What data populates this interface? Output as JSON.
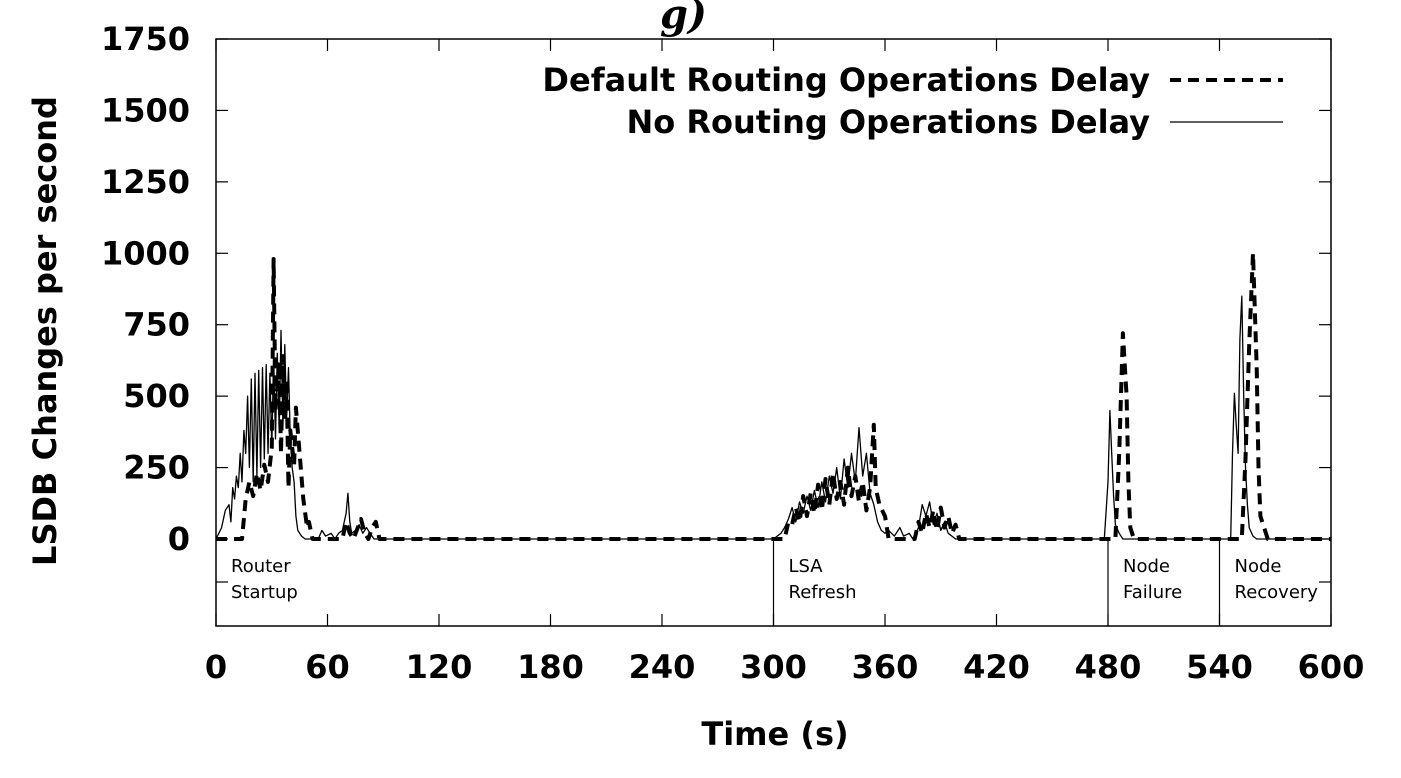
{
  "chart_data": {
    "type": "line",
    "title": "",
    "partial_title_fragment": "g)",
    "xlabel": "Time (s)",
    "ylabel": "LSDB Changes per second",
    "xlim": [
      0,
      600
    ],
    "ylim": [
      0,
      1750
    ],
    "x_ticks": [
      "0",
      "60",
      "120",
      "180",
      "240",
      "300",
      "360",
      "420",
      "480",
      "540",
      "600"
    ],
    "y_ticks": [
      "0",
      "250",
      "500",
      "750",
      "1000",
      "1250",
      "1500",
      "1750"
    ],
    "legend_position": "top-right",
    "phases": [
      {
        "label_line1": "Router",
        "label_line2": "Startup",
        "start": 0,
        "end": 300
      },
      {
        "label_line1": "LSA",
        "label_line2": "Refresh",
        "start": 300,
        "end": 480
      },
      {
        "label_line1": "Node",
        "label_line2": "Failure",
        "start": 480,
        "end": 540
      },
      {
        "label_line1": "Node",
        "label_line2": "Recovery",
        "start": 540,
        "end": 600
      }
    ],
    "series": [
      {
        "name": "Default Routing Operations Delay",
        "style": "dashed",
        "color": "#000000",
        "points": [
          [
            0,
            0
          ],
          [
            14,
            0
          ],
          [
            16,
            140
          ],
          [
            18,
            200
          ],
          [
            20,
            150
          ],
          [
            22,
            230
          ],
          [
            24,
            170
          ],
          [
            26,
            260
          ],
          [
            28,
            200
          ],
          [
            30,
            320
          ],
          [
            31,
            980
          ],
          [
            32,
            450
          ],
          [
            34,
            620
          ],
          [
            35,
            300
          ],
          [
            36,
            640
          ],
          [
            37,
            420
          ],
          [
            38,
            560
          ],
          [
            39,
            180
          ],
          [
            40,
            380
          ],
          [
            42,
            260
          ],
          [
            43,
            460
          ],
          [
            45,
            300
          ],
          [
            47,
            140
          ],
          [
            48,
            90
          ],
          [
            49,
            40
          ],
          [
            50,
            60
          ],
          [
            52,
            0
          ],
          [
            62,
            0
          ],
          [
            68,
            0
          ],
          [
            70,
            60
          ],
          [
            72,
            20
          ],
          [
            74,
            0
          ],
          [
            78,
            70
          ],
          [
            80,
            20
          ],
          [
            82,
            0
          ],
          [
            84,
            40
          ],
          [
            86,
            60
          ],
          [
            88,
            0
          ],
          [
            300,
            0
          ],
          [
            306,
            0
          ],
          [
            308,
            60
          ],
          [
            310,
            50
          ],
          [
            312,
            110
          ],
          [
            314,
            60
          ],
          [
            316,
            150
          ],
          [
            318,
            80
          ],
          [
            320,
            160
          ],
          [
            322,
            90
          ],
          [
            324,
            190
          ],
          [
            326,
            100
          ],
          [
            328,
            210
          ],
          [
            330,
            120
          ],
          [
            332,
            230
          ],
          [
            334,
            140
          ],
          [
            336,
            200
          ],
          [
            338,
            120
          ],
          [
            340,
            250
          ],
          [
            342,
            150
          ],
          [
            344,
            220
          ],
          [
            346,
            130
          ],
          [
            348,
            200
          ],
          [
            350,
            100
          ],
          [
            352,
            180
          ],
          [
            354,
            400
          ],
          [
            355,
            180
          ],
          [
            357,
            120
          ],
          [
            360,
            80
          ],
          [
            362,
            0
          ],
          [
            376,
            0
          ],
          [
            378,
            60
          ],
          [
            380,
            20
          ],
          [
            382,
            90
          ],
          [
            384,
            40
          ],
          [
            386,
            100
          ],
          [
            388,
            30
          ],
          [
            390,
            110
          ],
          [
            392,
            40
          ],
          [
            394,
            80
          ],
          [
            396,
            20
          ],
          [
            398,
            50
          ],
          [
            400,
            0
          ],
          [
            484,
            0
          ],
          [
            486,
            300
          ],
          [
            488,
            720
          ],
          [
            490,
            500
          ],
          [
            491,
            200
          ],
          [
            492,
            40
          ],
          [
            494,
            0
          ],
          [
            552,
            0
          ],
          [
            554,
            280
          ],
          [
            556,
            680
          ],
          [
            558,
            1000
          ],
          [
            560,
            600
          ],
          [
            561,
            250
          ],
          [
            562,
            80
          ],
          [
            564,
            40
          ],
          [
            566,
            0
          ],
          [
            600,
            0
          ]
        ]
      },
      {
        "name": "No Routing Operations Delay",
        "style": "solid",
        "color": "#000000",
        "points": [
          [
            0,
            0
          ],
          [
            3,
            40
          ],
          [
            5,
            100
          ],
          [
            7,
            120
          ],
          [
            8,
            60
          ],
          [
            9,
            180
          ],
          [
            10,
            140
          ],
          [
            11,
            220
          ],
          [
            12,
            180
          ],
          [
            13,
            300
          ],
          [
            14,
            200
          ],
          [
            15,
            380
          ],
          [
            16,
            300
          ],
          [
            17,
            500
          ],
          [
            18,
            250
          ],
          [
            19,
            560
          ],
          [
            20,
            200
          ],
          [
            21,
            580
          ],
          [
            22,
            220
          ],
          [
            23,
            590
          ],
          [
            24,
            250
          ],
          [
            25,
            600
          ],
          [
            26,
            280
          ],
          [
            27,
            610
          ],
          [
            28,
            300
          ],
          [
            29,
            580
          ],
          [
            30,
            320
          ],
          [
            31,
            640
          ],
          [
            32,
            350
          ],
          [
            33,
            650
          ],
          [
            34,
            380
          ],
          [
            35,
            730
          ],
          [
            36,
            400
          ],
          [
            37,
            680
          ],
          [
            38,
            420
          ],
          [
            39,
            600
          ],
          [
            40,
            350
          ],
          [
            41,
            250
          ],
          [
            42,
            200
          ],
          [
            43,
            80
          ],
          [
            44,
            30
          ],
          [
            46,
            10
          ],
          [
            48,
            0
          ],
          [
            55,
            0
          ],
          [
            57,
            30
          ],
          [
            59,
            10
          ],
          [
            62,
            20
          ],
          [
            64,
            0
          ],
          [
            66,
            20
          ],
          [
            68,
            30
          ],
          [
            70,
            90
          ],
          [
            71,
            160
          ],
          [
            72,
            60
          ],
          [
            73,
            20
          ],
          [
            75,
            30
          ],
          [
            77,
            50
          ],
          [
            79,
            20
          ],
          [
            81,
            40
          ],
          [
            83,
            20
          ],
          [
            85,
            0
          ],
          [
            300,
            0
          ],
          [
            304,
            20
          ],
          [
            306,
            40
          ],
          [
            308,
            70
          ],
          [
            310,
            110
          ],
          [
            312,
            60
          ],
          [
            314,
            130
          ],
          [
            316,
            90
          ],
          [
            318,
            150
          ],
          [
            320,
            100
          ],
          [
            322,
            170
          ],
          [
            324,
            110
          ],
          [
            326,
            200
          ],
          [
            328,
            130
          ],
          [
            330,
            220
          ],
          [
            332,
            160
          ],
          [
            334,
            250
          ],
          [
            336,
            140
          ],
          [
            338,
            280
          ],
          [
            340,
            180
          ],
          [
            342,
            300
          ],
          [
            344,
            200
          ],
          [
            346,
            390
          ],
          [
            348,
            220
          ],
          [
            350,
            300
          ],
          [
            352,
            160
          ],
          [
            354,
            120
          ],
          [
            356,
            60
          ],
          [
            358,
            30
          ],
          [
            360,
            20
          ],
          [
            362,
            30
          ],
          [
            365,
            10
          ],
          [
            368,
            40
          ],
          [
            370,
            10
          ],
          [
            373,
            20
          ],
          [
            375,
            0
          ],
          [
            378,
            40
          ],
          [
            380,
            120
          ],
          [
            382,
            80
          ],
          [
            384,
            130
          ],
          [
            386,
            50
          ],
          [
            388,
            90
          ],
          [
            390,
            30
          ],
          [
            392,
            60
          ],
          [
            394,
            20
          ],
          [
            396,
            10
          ],
          [
            398,
            0
          ],
          [
            478,
            0
          ],
          [
            480,
            200
          ],
          [
            481,
            450
          ],
          [
            482,
            300
          ],
          [
            483,
            150
          ],
          [
            484,
            50
          ],
          [
            486,
            20
          ],
          [
            488,
            0
          ],
          [
            546,
            0
          ],
          [
            547,
            300
          ],
          [
            548,
            510
          ],
          [
            549,
            400
          ],
          [
            550,
            300
          ],
          [
            551,
            700
          ],
          [
            552,
            850
          ],
          [
            553,
            500
          ],
          [
            554,
            250
          ],
          [
            555,
            120
          ],
          [
            556,
            40
          ],
          [
            558,
            10
          ],
          [
            560,
            0
          ],
          [
            600,
            0
          ]
        ]
      }
    ]
  }
}
